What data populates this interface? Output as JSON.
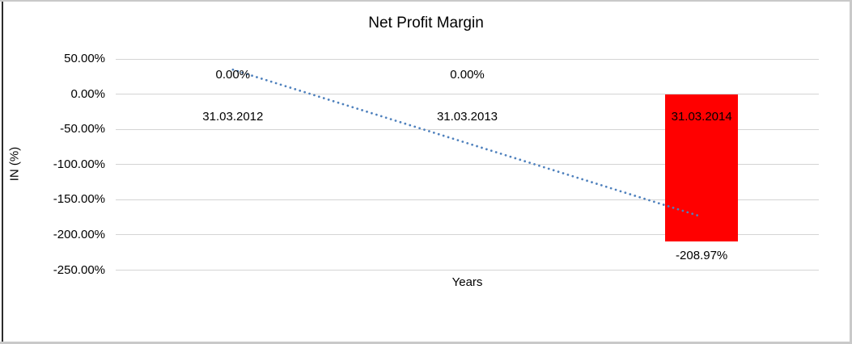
{
  "chart_data": {
    "type": "bar",
    "title": "Net Profit Margin",
    "xlabel": "Years",
    "ylabel": "IN (%)",
    "categories": [
      "31.03.2012",
      "31.03.2013",
      "31.03.2014"
    ],
    "values": [
      0,
      0,
      -208.97
    ],
    "data_labels": [
      "0.00%",
      "0.00%",
      "-208.97%"
    ],
    "y_ticks": [
      {
        "label": "50.00%",
        "value": 50
      },
      {
        "label": "0.00%",
        "value": 0
      },
      {
        "label": "-50.00%",
        "value": -50
      },
      {
        "label": "-100.00%",
        "value": -100
      },
      {
        "label": "-150.00%",
        "value": -150
      },
      {
        "label": "-200.00%",
        "value": -200
      },
      {
        "label": "-250.00%",
        "value": -250
      }
    ],
    "ylim": [
      -250,
      50
    ],
    "grid": true,
    "legend": "none",
    "bar_color": "#FF0000",
    "trendline": {
      "type": "linear",
      "style": "dotted",
      "color": "#4F81BD",
      "start_value": 34.8,
      "end_value": -174.1
    }
  },
  "colors": {
    "background": "#FFFFFF",
    "gridline": "#D4D4D4",
    "text": "#000000",
    "frame_gray": "#C9C9C9",
    "frame_dark": "#2B2B2B"
  }
}
